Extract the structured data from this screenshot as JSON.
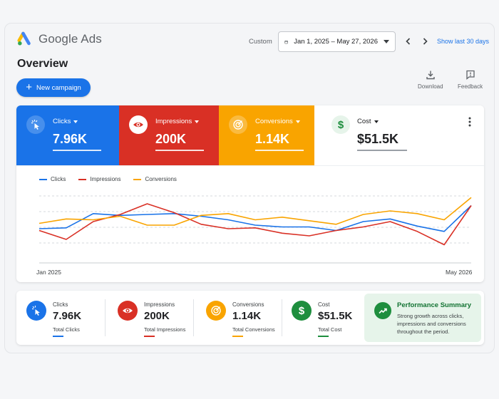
{
  "app": {
    "logo_text": "Google Ads",
    "page_title": "Overview"
  },
  "header": {
    "custom_label": "Custom",
    "date_range": "Jan 1, 2025 – May 27, 2026",
    "show_last_label": "Show last 30 days"
  },
  "actions": {
    "new_campaign_label": "New campaign",
    "download_label": "Download",
    "feedback_label": "Feedback"
  },
  "kpis": [
    {
      "label": "Clicks",
      "value": "7.96K",
      "color": "#1a73e8",
      "icon": "cursor-click-icon"
    },
    {
      "label": "Impressions",
      "value": "200K",
      "color": "#d93025",
      "icon": "eye-icon"
    },
    {
      "label": "Conversions",
      "value": "1.14K",
      "color": "#f9a400",
      "icon": "target-icon"
    },
    {
      "label": "Cost",
      "value": "$51.5K",
      "color": "#ffffff",
      "icon": "dollar-icon"
    }
  ],
  "chart_data": {
    "type": "line",
    "x_start_label": "Jan 2025",
    "x_end_label": "May 2026",
    "legend_position": "top-left",
    "grid": true,
    "series": [
      {
        "name": "Clicks",
        "color": "#1a73e8",
        "values": [
          40,
          41,
          57,
          55,
          56,
          57,
          54,
          50,
          44,
          42,
          42,
          38,
          48,
          51,
          43,
          37,
          66
        ]
      },
      {
        "name": "Impressions",
        "color": "#d93025",
        "values": [
          38,
          28,
          48,
          56,
          68,
          58,
          45,
          40,
          41,
          35,
          32,
          38,
          42,
          48,
          37,
          22,
          66
        ]
      },
      {
        "name": "Conversions",
        "color": "#f9a400",
        "values": [
          46,
          51,
          50,
          54,
          44,
          44,
          55,
          57,
          50,
          53,
          49,
          45,
          56,
          60,
          57,
          50,
          75
        ]
      }
    ]
  },
  "summary": [
    {
      "label": "Clicks",
      "value": "7.96K",
      "sub": "Total Clicks",
      "color": "#1a73e8",
      "icon": "cursor-click-icon"
    },
    {
      "label": "Impressions",
      "value": "200K",
      "sub": "Total Impressions",
      "color": "#d93025",
      "icon": "eye-icon"
    },
    {
      "label": "Conversions",
      "value": "1.14K",
      "sub": "Total Conversions",
      "color": "#f9a400",
      "icon": "target-icon"
    },
    {
      "label": "Cost",
      "value": "$51.5K",
      "sub": "Total Cost",
      "color": "#1e8e3e",
      "icon": "dollar-icon"
    }
  ],
  "performance": {
    "title": "Performance Summary",
    "description": "Strong growth across clicks, impressions and conversions throughout the period.",
    "icon": "trend-up-icon"
  }
}
